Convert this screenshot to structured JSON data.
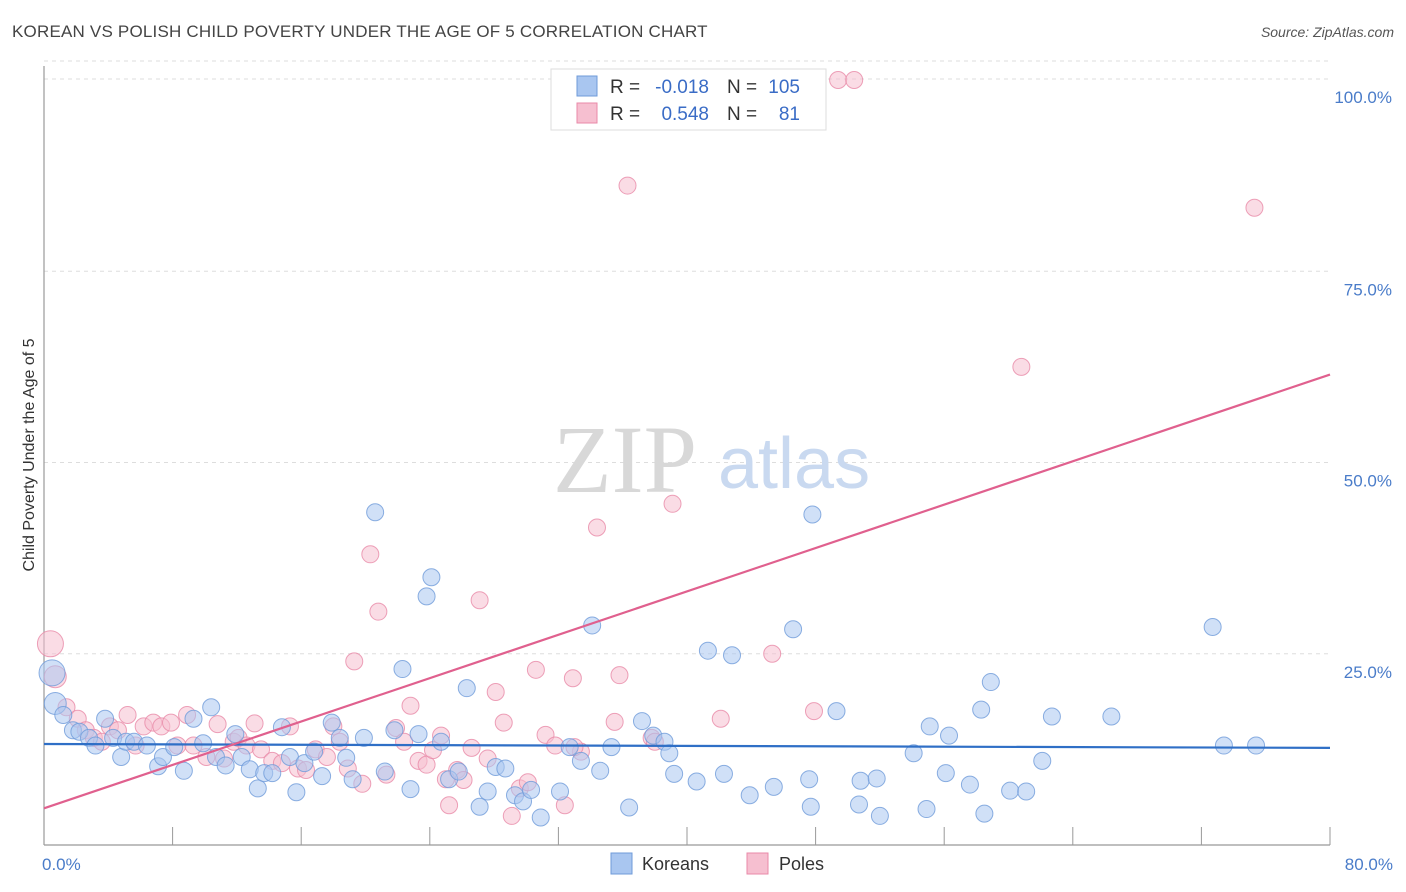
{
  "title": "KOREAN VS POLISH CHILD POVERTY UNDER THE AGE OF 5 CORRELATION CHART",
  "source": "Source: ZipAtlas.com",
  "colors": {
    "koreans_fill": "#a9c6f0",
    "koreans_stroke": "#6f9bd9",
    "koreans_line": "#2f6fc6",
    "poles_fill": "#f6bfd0",
    "poles_stroke": "#e98aa8",
    "poles_line": "#e0608e",
    "tick_text": "#4a7cc9",
    "grid": "#dddddd"
  },
  "legend": {
    "rows": [
      {
        "r_label": "R =",
        "r_value": "-0.018",
        "n_label": "N =",
        "n_value": "105"
      },
      {
        "r_label": "R =",
        "r_value": "0.548",
        "n_label": "N =",
        "n_value": "81"
      }
    ]
  },
  "bottom_legend": [
    "Koreans",
    "Poles"
  ],
  "watermark": {
    "zip": "ZIP",
    "atlas": "atlas"
  },
  "chart_data": {
    "type": "scatter",
    "title": "KOREAN VS POLISH CHILD POVERTY UNDER THE AGE OF 5 CORRELATION CHART",
    "xlabel": "",
    "ylabel": "Child Poverty Under the Age of 5",
    "xlim": [
      0,
      80
    ],
    "ylim": [
      0,
      100
    ],
    "x_tick_labels": [
      "0.0%",
      "80.0%"
    ],
    "y_tick_labels": [
      "100.0%",
      "75.0%",
      "50.0%",
      "25.0%"
    ],
    "y_tick_values": [
      100,
      75,
      50,
      25
    ],
    "grid": true,
    "legend_position": "top-center",
    "series": [
      {
        "name": "Koreans",
        "r": -0.018,
        "n": 105,
        "trend": {
          "x": [
            0,
            80
          ],
          "y": [
            13.2,
            12.7
          ]
        },
        "points": [
          [
            0.5,
            22.5
          ],
          [
            0.7,
            18.5
          ],
          [
            1.2,
            17
          ],
          [
            1.8,
            15
          ],
          [
            2.2,
            14.8
          ],
          [
            2.8,
            14
          ],
          [
            3.2,
            13
          ],
          [
            3.8,
            16.5
          ],
          [
            4.3,
            14
          ],
          [
            4.8,
            11.5
          ],
          [
            5.1,
            13.5
          ],
          [
            5.6,
            13.5
          ],
          [
            6.4,
            13
          ],
          [
            7.1,
            10.3
          ],
          [
            7.4,
            11.5
          ],
          [
            8.1,
            12.8
          ],
          [
            8.7,
            9.7
          ],
          [
            9.3,
            16.5
          ],
          [
            9.9,
            13.3
          ],
          [
            10.4,
            18
          ],
          [
            10.7,
            11.5
          ],
          [
            11.3,
            10.4
          ],
          [
            11.9,
            14.5
          ],
          [
            12.3,
            11.5
          ],
          [
            12.8,
            9.9
          ],
          [
            13.3,
            7.4
          ],
          [
            13.7,
            9.4
          ],
          [
            14.2,
            9.4
          ],
          [
            14.8,
            15.4
          ],
          [
            15.3,
            11.5
          ],
          [
            15.7,
            6.9
          ],
          [
            16.2,
            10.7
          ],
          [
            16.8,
            12.2
          ],
          [
            17.3,
            9
          ],
          [
            17.9,
            16
          ],
          [
            18.4,
            14
          ],
          [
            18.8,
            11.4
          ],
          [
            19.2,
            8.6
          ],
          [
            19.9,
            14
          ],
          [
            20.6,
            43.5
          ],
          [
            21.2,
            9.6
          ],
          [
            21.8,
            15
          ],
          [
            22.3,
            23
          ],
          [
            22.8,
            7.3
          ],
          [
            23.3,
            14.5
          ],
          [
            23.8,
            32.5
          ],
          [
            24.1,
            35
          ],
          [
            24.7,
            13.5
          ],
          [
            25.2,
            8.6
          ],
          [
            25.8,
            9.6
          ],
          [
            26.3,
            20.5
          ],
          [
            27.1,
            5
          ],
          [
            27.6,
            7
          ],
          [
            28.1,
            10.2
          ],
          [
            28.7,
            10
          ],
          [
            29.3,
            6.5
          ],
          [
            29.8,
            5.7
          ],
          [
            30.3,
            7.2
          ],
          [
            30.9,
            3.6
          ],
          [
            32.1,
            7
          ],
          [
            32.7,
            12.8
          ],
          [
            33.4,
            11
          ],
          [
            34.1,
            28.7
          ],
          [
            34.6,
            9.7
          ],
          [
            35.3,
            12.8
          ],
          [
            36.4,
            4.9
          ],
          [
            37.2,
            16.2
          ],
          [
            37.9,
            14.3
          ],
          [
            38.6,
            13.5
          ],
          [
            38.9,
            12
          ],
          [
            39.2,
            9.3
          ],
          [
            40.6,
            8.3
          ],
          [
            41.3,
            25.4
          ],
          [
            42.3,
            9.3
          ],
          [
            42.8,
            24.8
          ],
          [
            43.9,
            6.5
          ],
          [
            45.4,
            7.6
          ],
          [
            46.6,
            28.2
          ],
          [
            47.6,
            8.6
          ],
          [
            47.7,
            5
          ],
          [
            47.8,
            43.2
          ],
          [
            49.3,
            17.5
          ],
          [
            50.7,
            5.3
          ],
          [
            50.8,
            8.4
          ],
          [
            51.8,
            8.7
          ],
          [
            52.0,
            3.8
          ],
          [
            54.1,
            12
          ],
          [
            54.9,
            4.7
          ],
          [
            55.1,
            15.5
          ],
          [
            56.1,
            9.4
          ],
          [
            56.3,
            14.3
          ],
          [
            57.6,
            7.9
          ],
          [
            58.3,
            17.7
          ],
          [
            58.5,
            4.1
          ],
          [
            58.9,
            21.3
          ],
          [
            60.1,
            7.1
          ],
          [
            61.1,
            7
          ],
          [
            62.1,
            11
          ],
          [
            62.7,
            16.8
          ],
          [
            66.4,
            16.8
          ],
          [
            72.7,
            28.5
          ],
          [
            73.4,
            13
          ],
          [
            75.4,
            13
          ]
        ]
      },
      {
        "name": "Poles",
        "r": 0.548,
        "n": 81,
        "trend": {
          "x": [
            0,
            80
          ],
          "y": [
            4.8,
            61.5
          ]
        },
        "points": [
          [
            0.4,
            26.3
          ],
          [
            0.7,
            22
          ],
          [
            1.4,
            18
          ],
          [
            2.1,
            16.5
          ],
          [
            2.6,
            15
          ],
          [
            3.1,
            14
          ],
          [
            3.6,
            13.5
          ],
          [
            4.1,
            15.5
          ],
          [
            4.6,
            15
          ],
          [
            5.2,
            17
          ],
          [
            5.7,
            13
          ],
          [
            6.2,
            15.5
          ],
          [
            6.8,
            16
          ],
          [
            7.3,
            15.5
          ],
          [
            7.9,
            16
          ],
          [
            8.3,
            13
          ],
          [
            8.9,
            17
          ],
          [
            9.3,
            13
          ],
          [
            10.1,
            11.5
          ],
          [
            10.8,
            15.8
          ],
          [
            11.2,
            11.3
          ],
          [
            11.8,
            13.5
          ],
          [
            12.1,
            14
          ],
          [
            12.6,
            13
          ],
          [
            13.1,
            15.9
          ],
          [
            13.5,
            12.5
          ],
          [
            14.2,
            11
          ],
          [
            14.8,
            10.7
          ],
          [
            15.3,
            15.5
          ],
          [
            15.8,
            10
          ],
          [
            16.3,
            9.8
          ],
          [
            16.9,
            12.5
          ],
          [
            17.6,
            11.5
          ],
          [
            18.0,
            15.5
          ],
          [
            18.4,
            13.5
          ],
          [
            18.9,
            10
          ],
          [
            19.3,
            24
          ],
          [
            19.8,
            8
          ],
          [
            20.3,
            38
          ],
          [
            20.8,
            30.5
          ],
          [
            21.3,
            9.2
          ],
          [
            21.9,
            15.3
          ],
          [
            22.4,
            13.5
          ],
          [
            22.8,
            18.2
          ],
          [
            23.3,
            11
          ],
          [
            23.8,
            10.5
          ],
          [
            24.2,
            12.4
          ],
          [
            24.7,
            14.3
          ],
          [
            25.2,
            5.2
          ],
          [
            25.7,
            9.8
          ],
          [
            26.1,
            8.5
          ],
          [
            26.6,
            12.7
          ],
          [
            27.1,
            32
          ],
          [
            27.6,
            11.3
          ],
          [
            28.1,
            20
          ],
          [
            28.6,
            16
          ],
          [
            29.1,
            3.8
          ],
          [
            29.6,
            7.4
          ],
          [
            30.1,
            8.2
          ],
          [
            30.6,
            22.9
          ],
          [
            31.2,
            14.4
          ],
          [
            31.8,
            13
          ],
          [
            32.4,
            5.2
          ],
          [
            32.9,
            21.8
          ],
          [
            33.4,
            12.2
          ],
          [
            34.4,
            41.5
          ],
          [
            35.5,
            16.1
          ],
          [
            35.8,
            22.2
          ],
          [
            36.3,
            86.2
          ],
          [
            37.8,
            14
          ],
          [
            39.1,
            44.6
          ],
          [
            42.1,
            16.5
          ],
          [
            45.3,
            25
          ],
          [
            47.9,
            17.5
          ],
          [
            49.4,
            100
          ],
          [
            50.4,
            100
          ],
          [
            60.8,
            62.5
          ],
          [
            75.3,
            83.3
          ],
          [
            25,
            8.6
          ],
          [
            33,
            12.8
          ],
          [
            38,
            13.5
          ]
        ]
      }
    ]
  }
}
